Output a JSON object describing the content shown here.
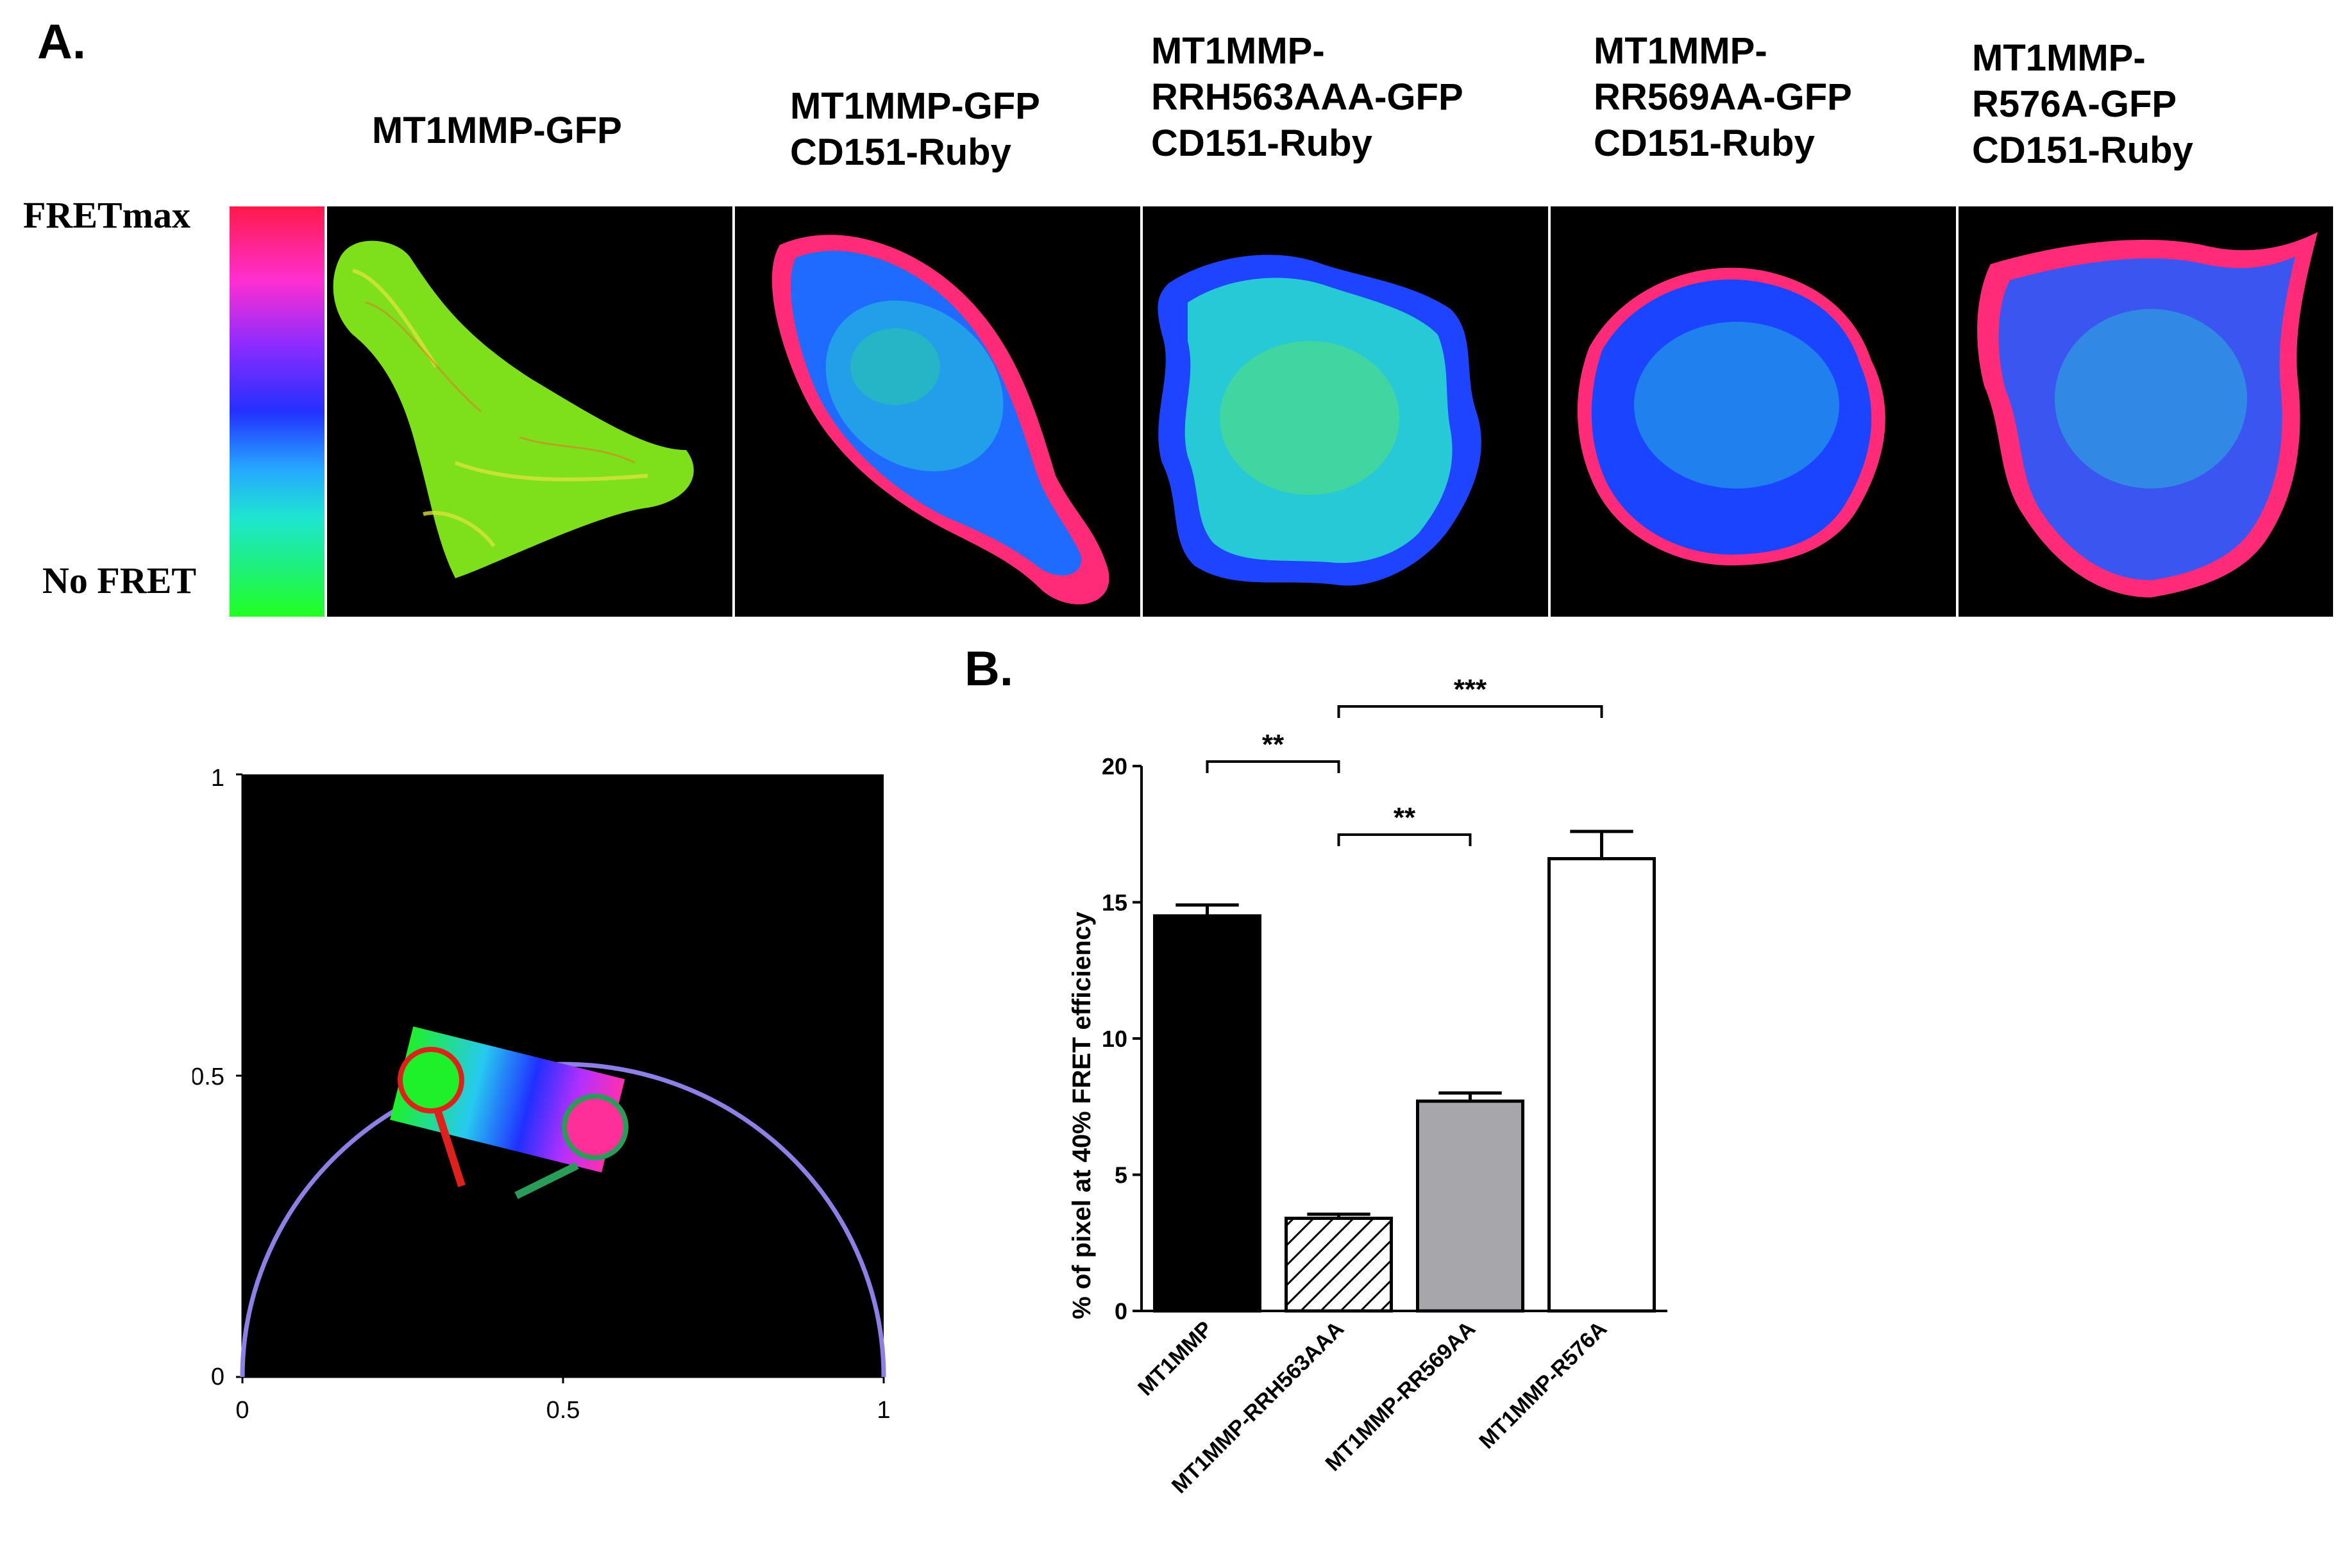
{
  "figure": {
    "panel_a_label": "A.",
    "panel_b_label": "B.",
    "colorbar": {
      "top_label": "FRETmax",
      "bottom_label": "No FRET"
    },
    "columns": [
      {
        "title": "MT1MMP-GFP",
        "dominant_color": "#7de01a"
      },
      {
        "title": "MT1MMP-GFP\nCD151-Ruby",
        "dominant_color": "#1f6bff"
      },
      {
        "title": "MT1MMP-\nRRH563AAA-GFP\nCD151-Ruby",
        "dominant_color": "#27c9d6"
      },
      {
        "title": "MT1MMP-\nRR569AA-GFP\nCD151-Ruby",
        "dominant_color": "#1a44ff"
      },
      {
        "title": "MT1MMP-\nR576A-GFP\nCD151-Ruby",
        "dominant_color": "#3a55f0"
      }
    ]
  },
  "phasor": {
    "x_ticks": [
      "0",
      "0.5",
      "1"
    ],
    "y_ticks": [
      "0",
      "0.5",
      "1"
    ]
  },
  "chart_data": {
    "type": "bar",
    "title": "",
    "xlabel": "",
    "ylabel": "% of pixel at 40% FRET efficiency",
    "ylim": [
      0,
      20
    ],
    "yticks": [
      "0",
      "5",
      "10",
      "15",
      "20"
    ],
    "categories": [
      "MT1MMP",
      "MT1MMP-RRH563AAA",
      "MT1MMP-RR569AA",
      "MT1MMP-R576A"
    ],
    "values": [
      14.5,
      3.4,
      7.7,
      16.6
    ],
    "errors": [
      0.4,
      0.15,
      0.3,
      1.0
    ],
    "fills": [
      "#000000",
      "hatch",
      "#a7a7ab",
      "#ffffff"
    ],
    "significance": [
      {
        "from": 0,
        "to": 1,
        "label": "**"
      },
      {
        "from": 1,
        "to": 2,
        "label": "**"
      },
      {
        "from": 1,
        "to": 3,
        "label": "***"
      }
    ]
  }
}
